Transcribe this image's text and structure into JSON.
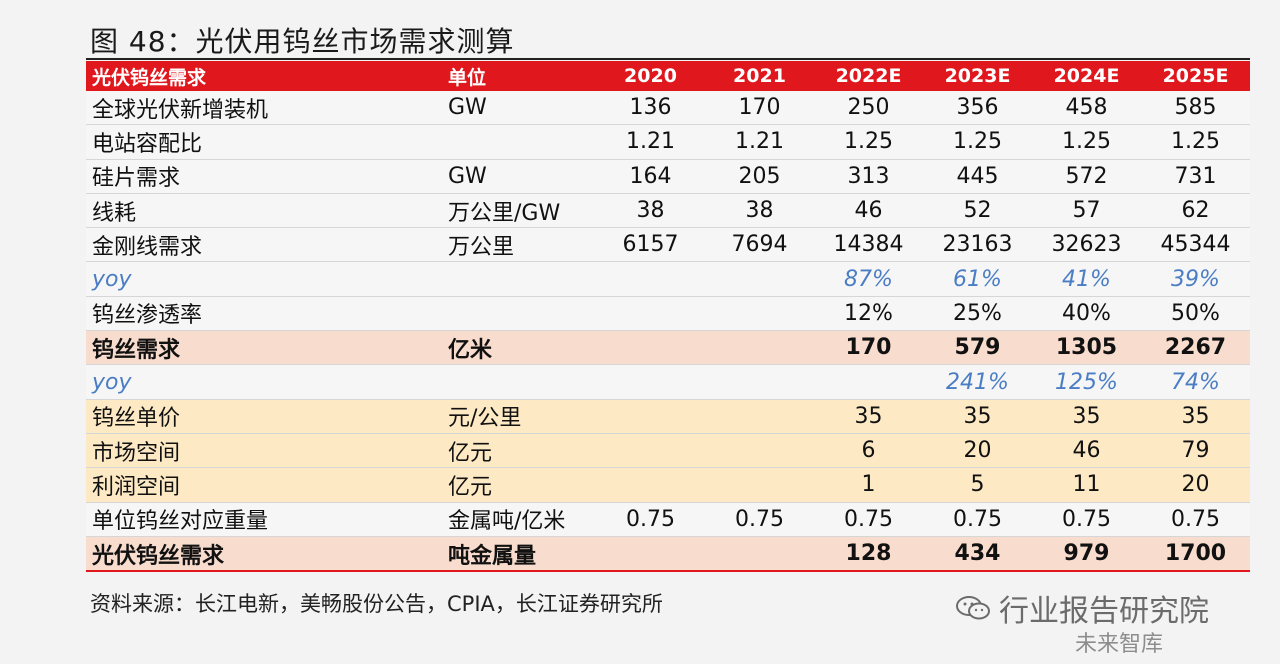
{
  "title": "图 48：光伏用钨丝市场需求测算",
  "header": [
    "光伏钨丝需求",
    "单位",
    "2020",
    "2021",
    "2022E",
    "2023E",
    "2024E",
    "2025E"
  ],
  "rows": [
    {
      "label": "全球光伏新增装机",
      "unit": "GW",
      "vals": [
        "136",
        "170",
        "250",
        "356",
        "458",
        "585"
      ]
    },
    {
      "label": "电站容配比",
      "unit": "",
      "vals": [
        "1.21",
        "1.21",
        "1.25",
        "1.25",
        "1.25",
        "1.25"
      ]
    },
    {
      "label": "硅片需求",
      "unit": "GW",
      "vals": [
        "164",
        "205",
        "313",
        "445",
        "572",
        "731"
      ]
    },
    {
      "label": "线耗",
      "unit": "万公里/GW",
      "vals": [
        "38",
        "38",
        "46",
        "52",
        "57",
        "62"
      ]
    },
    {
      "label": "金刚线需求",
      "unit": "万公里",
      "vals": [
        "6157",
        "7694",
        "14384",
        "23163",
        "32623",
        "45344"
      ]
    },
    {
      "label": "yoy",
      "unit": "",
      "vals": [
        "",
        "",
        "87%",
        "61%",
        "41%",
        "39%"
      ]
    },
    {
      "label": "钨丝渗透率",
      "unit": "",
      "vals": [
        "",
        "",
        "12%",
        "25%",
        "40%",
        "50%"
      ]
    },
    {
      "label": "钨丝需求",
      "unit": "亿米",
      "vals": [
        "",
        "",
        "170",
        "579",
        "1305",
        "2267"
      ]
    },
    {
      "label": "yoy",
      "unit": "",
      "vals": [
        "",
        "",
        "",
        "241%",
        "125%",
        "74%"
      ]
    },
    {
      "label": "钨丝单价",
      "unit": "元/公里",
      "vals": [
        "",
        "",
        "35",
        "35",
        "35",
        "35"
      ]
    },
    {
      "label": "市场空间",
      "unit": "亿元",
      "vals": [
        "",
        "",
        "6",
        "20",
        "46",
        "79"
      ]
    },
    {
      "label": "利润空间",
      "unit": "亿元",
      "vals": [
        "",
        "",
        "1",
        "5",
        "11",
        "20"
      ]
    },
    {
      "label": "单位钨丝对应重量",
      "unit": "金属吨/亿米",
      "vals": [
        "0.75",
        "0.75",
        "0.75",
        "0.75",
        "0.75",
        "0.75"
      ]
    },
    {
      "label": "光伏钨丝需求",
      "unit": "吨金属量",
      "vals": [
        "",
        "",
        "128",
        "434",
        "979",
        "1700"
      ]
    }
  ],
  "source": "资料来源：长江电新，美畅股份公告，CPIA，长江证券研究所",
  "watermark": {
    "line1": "行业报告研究院",
    "line2": "未来智库",
    "icon": "wechat-icon"
  },
  "colors": {
    "header_red": "#e0181e",
    "highlight_pink": "#f8dccd",
    "highlight_yellow": "#fde9c4",
    "yoy_blue": "#4a7dc4"
  }
}
